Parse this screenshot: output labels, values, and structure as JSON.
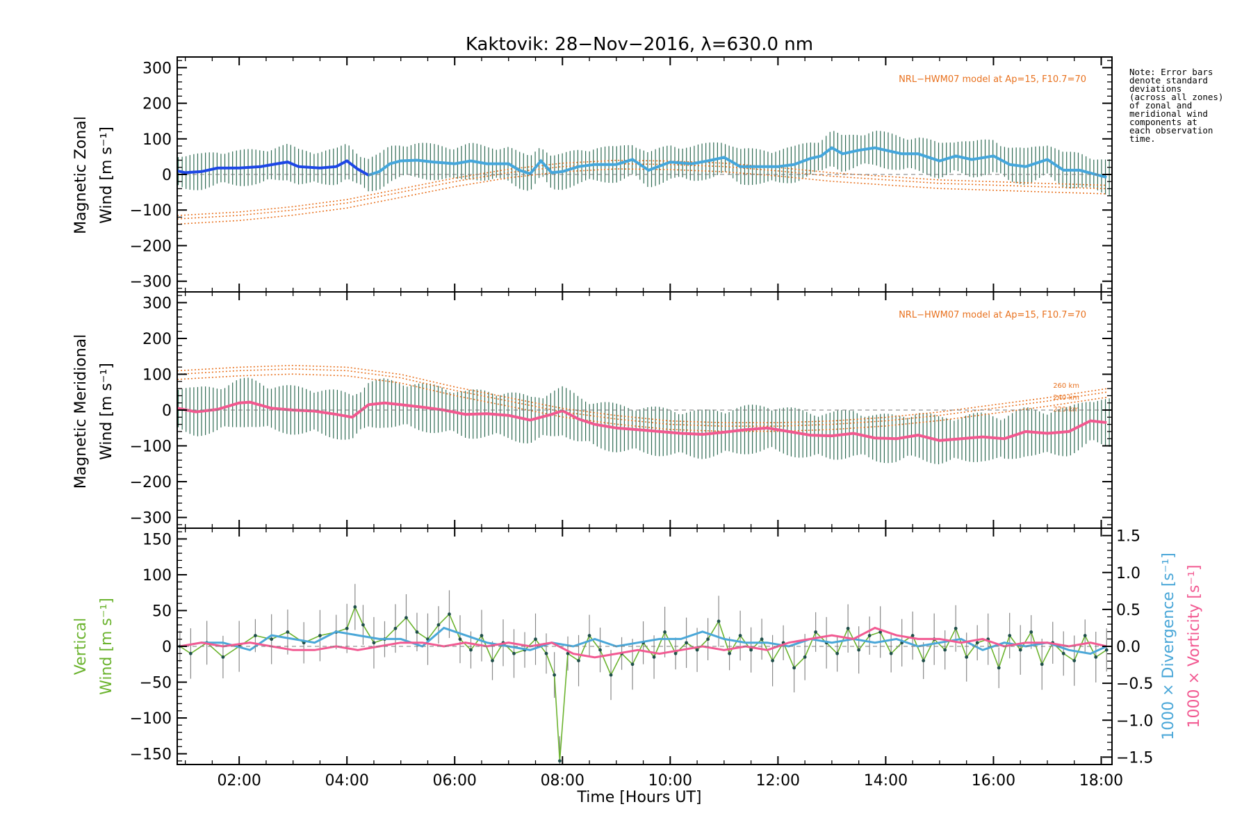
{
  "chart_data": [
    {
      "type": "line",
      "title": "Kaktovik: 28−Nov−2016, λ=630.0 nm",
      "ylabel_line1": "Magnetic Zonal",
      "ylabel_line2": "Wind [m s⁻¹]",
      "ylim": [
        -330,
        330
      ],
      "yticks": [
        300,
        200,
        100,
        0,
        -100,
        -200,
        -300
      ],
      "ytick_labels": [
        "300",
        "200",
        "100",
        "0",
        "−100",
        "−200",
        "−300"
      ],
      "model_label": "NRL−HWM07 model at Ap=15, F10.7=70",
      "errorbar_halfwidth": 45,
      "series": [
        {
          "role": "mean",
          "color": "#44a6dc",
          "early_color": "#1c46e6",
          "x_hours": [
            0.85,
            1.0,
            1.3,
            1.6,
            2.0,
            2.4,
            2.7,
            2.9,
            3.1,
            3.5,
            3.8,
            4.0,
            4.2,
            4.4,
            4.6,
            4.8,
            5.0,
            5.3,
            5.6,
            6.0,
            6.3,
            6.6,
            7.0,
            7.2,
            7.4,
            7.6,
            7.8,
            8.0,
            8.3,
            8.6,
            9.0,
            9.3,
            9.6,
            10.0,
            10.4,
            10.7,
            11.0,
            11.3,
            11.6,
            12.0,
            12.3,
            12.6,
            12.8,
            13.0,
            13.2,
            13.5,
            13.8,
            14.0,
            14.3,
            14.6,
            15.0,
            15.3,
            15.6,
            16.0,
            16.3,
            16.6,
            17.0,
            17.3,
            17.6,
            17.9,
            18.1
          ],
          "y": [
            10,
            5,
            8,
            18,
            18,
            22,
            30,
            35,
            22,
            18,
            22,
            38,
            15,
            -2,
            8,
            30,
            38,
            40,
            35,
            30,
            38,
            30,
            30,
            12,
            2,
            38,
            5,
            8,
            22,
            28,
            28,
            42,
            12,
            35,
            30,
            38,
            48,
            22,
            22,
            22,
            28,
            45,
            52,
            75,
            58,
            68,
            75,
            68,
            58,
            58,
            38,
            52,
            42,
            52,
            28,
            22,
            42,
            12,
            12,
            0,
            -8
          ]
        },
        {
          "role": "model",
          "color": "#e8711e",
          "x_hours": [
            0.85,
            2,
            3,
            4,
            5,
            6,
            7,
            8,
            9,
            10,
            11,
            12,
            13,
            14,
            15,
            16,
            17,
            18.1
          ],
          "y": [
            -125,
            -115,
            -100,
            -80,
            -50,
            -20,
            5,
            22,
            30,
            28,
            22,
            10,
            -5,
            -15,
            -25,
            -30,
            -35,
            -40
          ]
        }
      ]
    },
    {
      "type": "line",
      "ylabel_line1": "Magnetic Meridional",
      "ylabel_line2": "Wind [m s⁻¹]",
      "ylim": [
        -330,
        330
      ],
      "yticks": [
        300,
        200,
        100,
        0,
        -100,
        -200,
        -300
      ],
      "ytick_labels": [
        "300",
        "200",
        "100",
        "0",
        "−100",
        "−200",
        "−300"
      ],
      "model_label": "NRL−HWM07 model at Ap=15, F10.7=70",
      "altitude_labels": [
        "260 km",
        "240 km",
        "220 km"
      ],
      "errorbar_halfwidth": 60,
      "series": [
        {
          "role": "mean",
          "color": "#f2588f",
          "x_hours": [
            0.85,
            1.2,
            1.6,
            2.0,
            2.2,
            2.6,
            3.0,
            3.4,
            3.8,
            4.1,
            4.4,
            4.7,
            5.0,
            5.4,
            5.8,
            6.2,
            6.6,
            7.0,
            7.4,
            7.8,
            8.0,
            8.3,
            8.6,
            9.0,
            9.4,
            9.8,
            10.2,
            10.6,
            11.0,
            11.4,
            11.8,
            12.2,
            12.6,
            13.0,
            13.4,
            13.8,
            14.2,
            14.6,
            15.0,
            15.4,
            15.8,
            16.2,
            16.6,
            17.0,
            17.4,
            17.8,
            18.1
          ],
          "y": [
            5,
            -5,
            2,
            20,
            22,
            5,
            0,
            -3,
            -12,
            -20,
            15,
            20,
            15,
            8,
            0,
            -12,
            -10,
            -15,
            -28,
            -12,
            -2,
            -25,
            -40,
            -50,
            -55,
            -60,
            -65,
            -68,
            -62,
            -55,
            -50,
            -60,
            -70,
            -72,
            -65,
            -78,
            -80,
            -70,
            -85,
            -80,
            -75,
            -80,
            -60,
            -65,
            -60,
            -30,
            -35
          ]
        },
        {
          "role": "model",
          "color": "#e8711e",
          "x_hours": [
            0.85,
            2,
            3,
            4,
            5,
            6,
            7,
            8,
            9,
            10,
            11,
            12,
            13,
            14,
            15,
            16,
            17,
            18.1
          ],
          "y": [
            100,
            110,
            115,
            110,
            90,
            55,
            25,
            -5,
            -25,
            -40,
            -45,
            -45,
            -40,
            -30,
            -15,
            5,
            25,
            50
          ]
        }
      ]
    },
    {
      "type": "line",
      "xlabel": "Time [Hours UT]",
      "ylabel_line1": "Vertical",
      "ylabel_line2": "Wind [m s⁻¹]",
      "ylim": [
        -165,
        165
      ],
      "yticks": [
        150,
        100,
        50,
        0,
        -50,
        -100,
        -150
      ],
      "ytick_labels": [
        "150",
        "100",
        "50",
        "0",
        "−50",
        "−100",
        "−150"
      ],
      "y2label_divergence": "1000 × Divergence [s⁻¹]",
      "y2label_vorticity": "1000 × Vorticity [s⁻¹]",
      "y2lim": [
        -1.6,
        1.6
      ],
      "y2ticks": [
        1.5,
        1.0,
        0.5,
        0.0,
        -0.5,
        -1.0,
        -1.5
      ],
      "y2tick_labels": [
        "1.5",
        "1.0",
        "0.5",
        "0.0",
        "−0.5",
        "−1.0",
        "−1.5"
      ],
      "xlim_hours": [
        0.85,
        18.2
      ],
      "xticks_hours": [
        2,
        4,
        6,
        8,
        10,
        12,
        14,
        16,
        18
      ],
      "xtick_labels": [
        "02:00",
        "04:00",
        "06:00",
        "08:00",
        "10:00",
        "12:00",
        "14:00",
        "16:00",
        "18:00"
      ],
      "series": [
        {
          "name": "Vertical Wind",
          "role": "vertical",
          "color": "#6bb32e",
          "x_hours": [
            0.9,
            1.1,
            1.4,
            1.7,
            2.0,
            2.3,
            2.6,
            2.9,
            3.2,
            3.5,
            3.8,
            4.0,
            4.15,
            4.3,
            4.5,
            4.7,
            4.9,
            5.1,
            5.3,
            5.5,
            5.7,
            5.9,
            6.1,
            6.3,
            6.5,
            6.7,
            6.9,
            7.1,
            7.3,
            7.5,
            7.7,
            7.85,
            7.95,
            8.1,
            8.3,
            8.5,
            8.7,
            8.9,
            9.1,
            9.3,
            9.5,
            9.7,
            9.9,
            10.1,
            10.3,
            10.5,
            10.7,
            10.9,
            11.1,
            11.3,
            11.5,
            11.7,
            11.9,
            12.1,
            12.3,
            12.5,
            12.7,
            12.9,
            13.1,
            13.3,
            13.5,
            13.7,
            13.9,
            14.1,
            14.3,
            14.5,
            14.7,
            14.9,
            15.1,
            15.3,
            15.5,
            15.7,
            15.9,
            16.1,
            16.3,
            16.5,
            16.7,
            16.9,
            17.1,
            17.3,
            17.5,
            17.7,
            17.9,
            18.1
          ],
          "y": [
            0,
            -10,
            5,
            -15,
            0,
            15,
            10,
            20,
            5,
            15,
            20,
            25,
            55,
            30,
            5,
            10,
            25,
            40,
            20,
            10,
            30,
            45,
            10,
            -5,
            15,
            -20,
            5,
            -10,
            -5,
            10,
            -10,
            -40,
            -160,
            -10,
            -20,
            15,
            -5,
            -40,
            -10,
            -25,
            5,
            -15,
            20,
            -10,
            5,
            -5,
            10,
            35,
            -10,
            15,
            -5,
            10,
            -20,
            5,
            -30,
            -15,
            20,
            5,
            -10,
            25,
            -5,
            15,
            20,
            -10,
            5,
            15,
            -20,
            10,
            -5,
            25,
            -15,
            5,
            10,
            -30,
            15,
            -5,
            20,
            -25,
            5,
            -10,
            -20,
            15,
            -15,
            -5
          ]
        },
        {
          "name": "1000 x Divergence",
          "role": "divergence",
          "color": "#4aa7d8",
          "x_hours": [
            0.9,
            1.3,
            1.7,
            2.2,
            2.6,
            3.0,
            3.4,
            3.8,
            4.2,
            4.6,
            5.0,
            5.4,
            5.8,
            6.2,
            6.6,
            7.0,
            7.4,
            7.8,
            8.2,
            8.6,
            9.0,
            9.4,
            9.8,
            10.2,
            10.6,
            11.0,
            11.4,
            11.8,
            12.2,
            12.6,
            13.0,
            13.4,
            13.8,
            14.2,
            14.6,
            15.0,
            15.4,
            15.8,
            16.2,
            16.6,
            17.0,
            17.4,
            17.8,
            18.1
          ],
          "y": [
            0.0,
            0.05,
            0.05,
            -0.05,
            0.15,
            0.1,
            0.05,
            0.2,
            0.15,
            0.1,
            0.1,
            0.0,
            0.25,
            0.15,
            0.05,
            0.0,
            -0.05,
            0.05,
            0.0,
            0.1,
            0.0,
            0.05,
            0.1,
            0.1,
            0.2,
            0.1,
            0.05,
            0.05,
            0.0,
            0.1,
            0.05,
            0.1,
            0.05,
            0.1,
            0.0,
            0.05,
            0.1,
            -0.05,
            0.05,
            0.0,
            0.05,
            -0.05,
            -0.1,
            0.0
          ]
        },
        {
          "name": "1000 x Vorticity",
          "role": "vorticity",
          "color": "#f25a92",
          "x_hours": [
            0.9,
            1.3,
            1.7,
            2.2,
            2.6,
            3.0,
            3.4,
            3.8,
            4.2,
            4.6,
            5.0,
            5.4,
            5.8,
            6.2,
            6.6,
            7.0,
            7.4,
            7.8,
            8.2,
            8.6,
            9.0,
            9.4,
            9.8,
            10.2,
            10.6,
            11.0,
            11.4,
            11.8,
            12.2,
            12.6,
            13.0,
            13.4,
            13.8,
            14.2,
            14.6,
            15.0,
            15.4,
            15.8,
            16.2,
            16.6,
            17.0,
            17.4,
            17.8,
            18.1
          ],
          "y": [
            0.0,
            0.05,
            0.0,
            0.05,
            0.0,
            -0.05,
            -0.05,
            0.0,
            -0.05,
            0.0,
            0.05,
            0.05,
            0.0,
            0.05,
            0.0,
            0.05,
            0.0,
            0.05,
            -0.1,
            -0.15,
            -0.1,
            -0.05,
            -0.1,
            -0.05,
            0.0,
            -0.05,
            0.0,
            -0.05,
            0.05,
            0.1,
            0.15,
            0.1,
            0.25,
            0.15,
            0.1,
            0.1,
            0.05,
            0.1,
            0.0,
            0.05,
            0.05,
            0.0,
            0.05,
            0.0
          ]
        }
      ]
    }
  ],
  "note": {
    "lines": [
      "Note: Error bars",
      "denote standard",
      "deviations",
      "(across all zones)",
      "of zonal and",
      "meridional wind",
      "components at",
      "each observation",
      "time."
    ]
  }
}
